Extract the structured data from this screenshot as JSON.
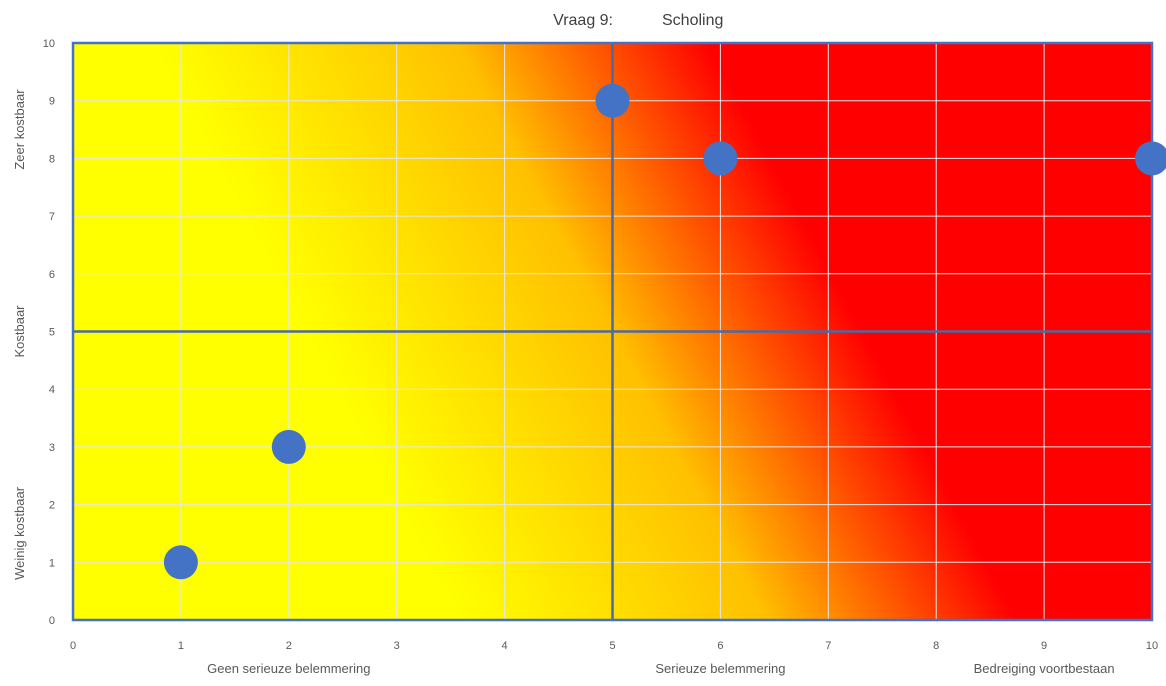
{
  "chart_data": {
    "type": "scatter",
    "title_parts": [
      "Vraag 9:",
      "Scholing"
    ],
    "xlim": [
      0,
      10
    ],
    "ylim": [
      0,
      10
    ],
    "x_ticks": [
      0,
      1,
      2,
      3,
      4,
      5,
      6,
      7,
      8,
      9,
      10
    ],
    "y_ticks": [
      0,
      1,
      2,
      3,
      4,
      5,
      6,
      7,
      8,
      9,
      10
    ],
    "x_category_labels": [
      {
        "label": "Geen serieuze belemmering",
        "at": 2
      },
      {
        "label": "Serieuze belemmering",
        "at": 6
      },
      {
        "label": "Bedreiging voortbestaan",
        "at": 9
      }
    ],
    "y_category_labels": [
      {
        "label": "Weinig kostbaar",
        "at": 1.5
      },
      {
        "label": "Kostbaar",
        "at": 5
      },
      {
        "label": "Zeer kostbaar",
        "at": 8.5
      }
    ],
    "divider_x": 5,
    "divider_y": 5,
    "grid": true,
    "background": "diagonal gradient: yellow (low risk, bottom-left) to red (high risk, top-right)",
    "points": [
      {
        "x": 1,
        "y": 1
      },
      {
        "x": 2,
        "y": 3
      },
      {
        "x": 5,
        "y": 9
      },
      {
        "x": 6,
        "y": 8
      },
      {
        "x": 10,
        "y": 8
      }
    ],
    "colors": {
      "point": "#4472c4",
      "low": "#ffff00",
      "mid": "#ffc000",
      "high": "#ff0000",
      "border": "#4472c4",
      "divider": "#4a6aa5"
    }
  }
}
